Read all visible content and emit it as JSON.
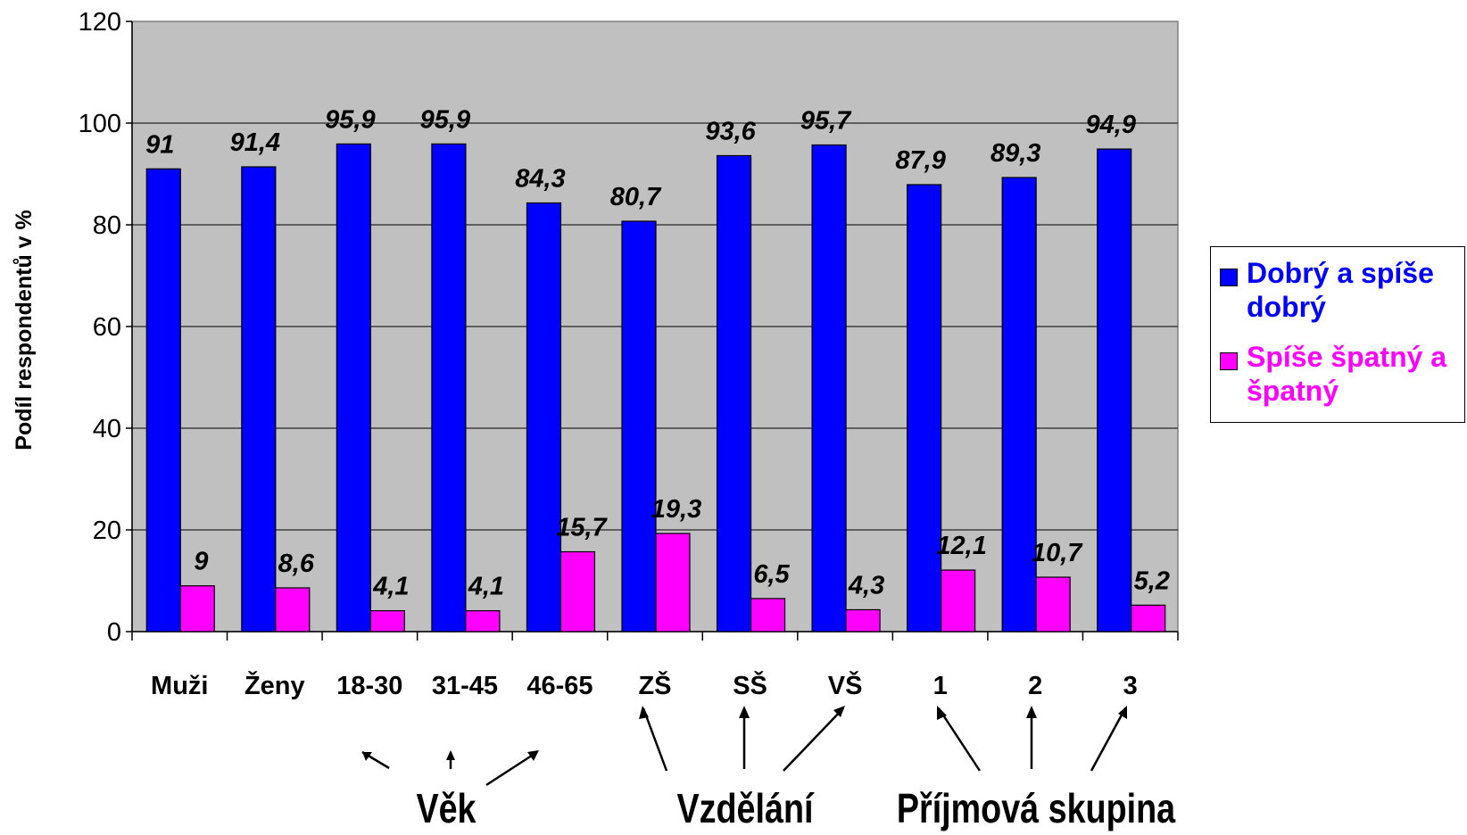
{
  "chart_data": {
    "type": "bar",
    "title": "",
    "xlabel": "",
    "ylabel": "Podíl respondentů v %",
    "ylim": [
      0,
      120
    ],
    "yticks": [
      0,
      20,
      40,
      60,
      80,
      100,
      120
    ],
    "grid": true,
    "legend_position": "right",
    "categories": [
      "Muži",
      "Ženy",
      "18-30",
      "31-45",
      "46-65",
      "ZŠ",
      "SŠ",
      "VŠ",
      "1",
      "2",
      "3"
    ],
    "series": [
      {
        "name": "Dobrý a spíše dobrý",
        "color": "#0000ff",
        "values": [
          91,
          91.4,
          95.9,
          95.9,
          84.3,
          80.7,
          93.6,
          95.7,
          87.9,
          89.3,
          94.9
        ],
        "labels": [
          "91",
          "91,4",
          "95,9",
          "95,9",
          "84,3",
          "80,7",
          "93,6",
          "95,7",
          "87,9",
          "89,3",
          "94,9"
        ]
      },
      {
        "name": "Spíše špatný a špatný",
        "color": "#ff00ff",
        "values": [
          9,
          8.6,
          4.1,
          4.1,
          15.7,
          19.3,
          6.5,
          4.3,
          12.1,
          10.7,
          5.2
        ],
        "labels": [
          "9",
          "8,6",
          "4,1",
          "4,1",
          "15,7",
          "19,3",
          "6,5",
          "4,3",
          "12,1",
          "10,7",
          "5,2"
        ]
      }
    ],
    "groups": [
      {
        "label": "Věk",
        "categories": [
          "18-30",
          "31-45",
          "46-65"
        ]
      },
      {
        "label": "Vzdělání",
        "categories": [
          "ZŠ",
          "SŠ",
          "VŠ"
        ]
      },
      {
        "label": "Příjmová skupina",
        "categories": [
          "1",
          "2",
          "3"
        ]
      }
    ],
    "plot_background": "#c0c0c0"
  },
  "legend": {
    "items": [
      {
        "label": "Dobrý a spíše dobrý",
        "color": "#0000ff"
      },
      {
        "label": "Spíše špatný a špatný",
        "color": "#ff00ff"
      }
    ]
  }
}
